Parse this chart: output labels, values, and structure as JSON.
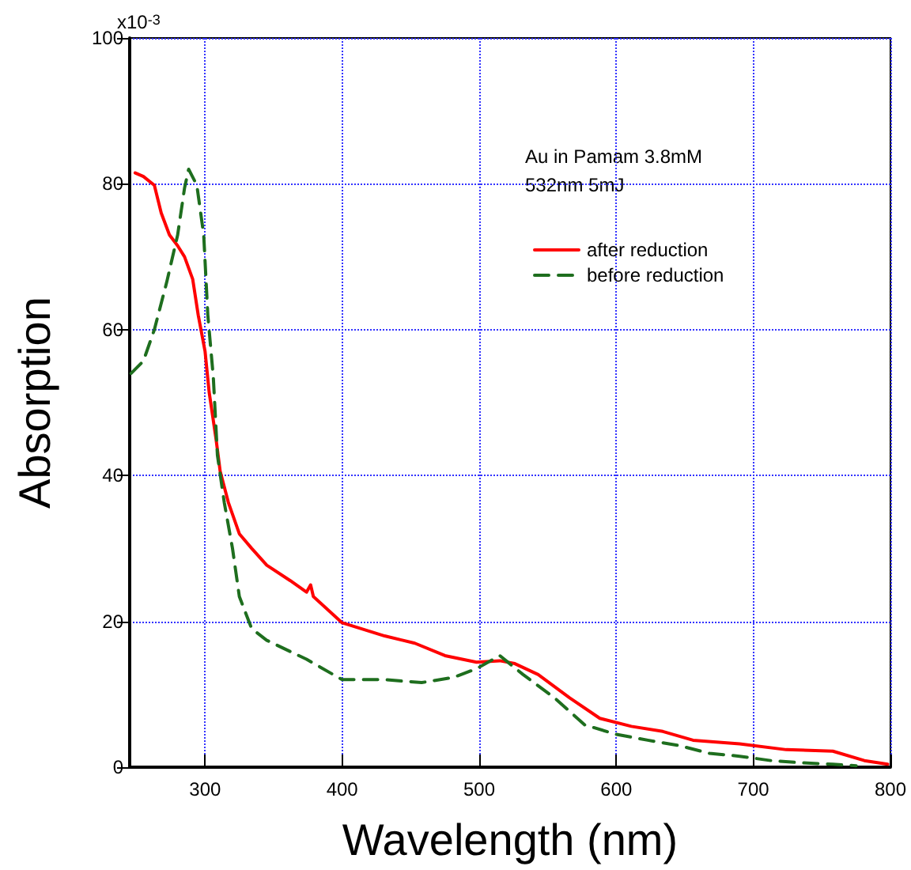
{
  "chart_data": {
    "type": "line",
    "xlabel": "Wavelength (nm)",
    "ylabel": "Absorption",
    "annotations": [
      "Au in Pamam 3.8mM",
      "532nm 5mJ",
      "x10$^{-3}$"
    ],
    "xlim": [
      245,
      800
    ],
    "xticks": [
      300,
      400,
      500,
      600,
      700,
      800
    ],
    "ylim": [
      0,
      100
    ],
    "yticks": [
      0,
      20,
      40,
      60,
      80,
      100
    ],
    "grid": true,
    "legend": "top right",
    "marker": "none",
    "series": [
      {
        "name": "after reduction",
        "color": "#ff0000",
        "line_style": "solid",
        "x": [
          249,
          255,
          263,
          268,
          274,
          280,
          285,
          291,
          295,
          300,
          303,
          308,
          311,
          317,
          325,
          334,
          345,
          362,
          374,
          377,
          379,
          400,
          431,
          453,
          475,
          498,
          515,
          526,
          543,
          566,
          588,
          611,
          634,
          656,
          690,
          724,
          758,
          781,
          798
        ],
        "values": [
          81.5,
          81,
          79.8,
          76,
          73,
          71.5,
          70,
          66.9,
          62,
          57,
          51.4,
          45,
          40.6,
          36.3,
          32,
          30,
          27.7,
          25.6,
          24,
          25,
          23.4,
          19.8,
          18,
          17,
          15.3,
          14.4,
          14.6,
          14.2,
          12.7,
          9.5,
          6.7,
          5.6,
          4.9,
          3.7,
          3.2,
          2.4,
          2.2,
          0.9,
          0.4
        ]
      },
      {
        "name": "before reduction",
        "color": "#1e6e1e",
        "line_style": "dashed",
        "x": [
          246,
          255,
          263,
          272,
          280,
          285,
          288,
          294,
          299,
          302,
          306,
          309,
          314,
          320,
          325,
          334,
          345,
          374,
          400,
          431,
          458,
          481,
          498,
          515,
          532,
          555,
          577,
          600,
          623,
          645,
          668,
          690,
          713,
          735,
          758,
          775
        ],
        "values": [
          54,
          55.7,
          60,
          66.5,
          73,
          79.4,
          82,
          79.8,
          73,
          62,
          53.5,
          42.8,
          36.3,
          30,
          23.4,
          19,
          17.4,
          14.8,
          12,
          12,
          11.6,
          12.3,
          13.5,
          15.3,
          12.7,
          9.5,
          5.8,
          4.5,
          3.7,
          3,
          1.9,
          1.5,
          0.9,
          0.6,
          0.4,
          0.2
        ]
      }
    ]
  }
}
